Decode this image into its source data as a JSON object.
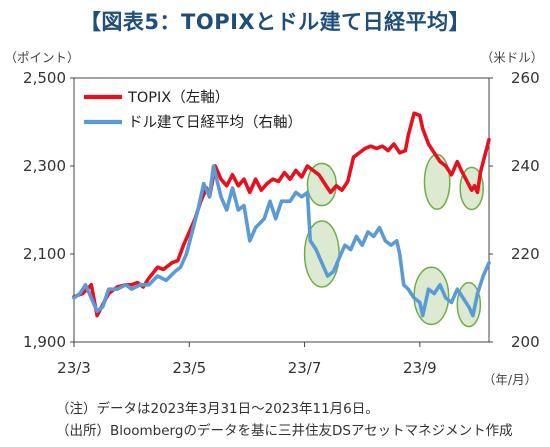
{
  "title": "【図表5：TOPIXとドル建て日経平均】",
  "chart_data": {
    "type": "line",
    "left_axis_unit": "（ポイント）",
    "right_axis_unit": "（米ドル）",
    "x_axis_unit": "（年/月）",
    "y_left_ticks": [
      "2,500",
      "2,300",
      "2,100",
      "1,900"
    ],
    "y_right_ticks": [
      "260",
      "240",
      "220",
      "200"
    ],
    "ylim_left": [
      1900,
      2500
    ],
    "ylim_right": [
      200,
      260
    ],
    "x_ticks": [
      "23/3",
      "23/5",
      "23/7",
      "23/9"
    ],
    "x_tick_positions": [
      0,
      2,
      4,
      6
    ],
    "x_range": [
      0,
      7.2
    ],
    "legend_position": "top-left",
    "series": [
      {
        "name": "TOPIX（左軸）",
        "axis": "left",
        "color": "#e8101e",
        "points": [
          [
            0,
            2003
          ],
          [
            0.15,
            2010
          ],
          [
            0.3,
            2030
          ],
          [
            0.4,
            1960
          ],
          [
            0.5,
            1985
          ],
          [
            0.6,
            2010
          ],
          [
            0.75,
            2025
          ],
          [
            0.9,
            2030
          ],
          [
            1.0,
            2030
          ],
          [
            1.1,
            2035
          ],
          [
            1.2,
            2025
          ],
          [
            1.3,
            2045
          ],
          [
            1.45,
            2070
          ],
          [
            1.55,
            2065
          ],
          [
            1.7,
            2080
          ],
          [
            1.8,
            2085
          ],
          [
            1.9,
            2120
          ],
          [
            2.0,
            2150
          ],
          [
            2.1,
            2180
          ],
          [
            2.2,
            2220
          ],
          [
            2.3,
            2250
          ],
          [
            2.35,
            2230
          ],
          [
            2.45,
            2300
          ],
          [
            2.55,
            2270
          ],
          [
            2.65,
            2255
          ],
          [
            2.75,
            2280
          ],
          [
            2.85,
            2255
          ],
          [
            2.95,
            2270
          ],
          [
            3.05,
            2240
          ],
          [
            3.15,
            2270
          ],
          [
            3.25,
            2245
          ],
          [
            3.35,
            2260
          ],
          [
            3.45,
            2270
          ],
          [
            3.55,
            2265
          ],
          [
            3.65,
            2285
          ],
          [
            3.75,
            2270
          ],
          [
            3.85,
            2290
          ],
          [
            3.95,
            2275
          ],
          [
            4.05,
            2300
          ],
          [
            4.15,
            2290
          ],
          [
            4.25,
            2280
          ],
          [
            4.35,
            2260
          ],
          [
            4.45,
            2240
          ],
          [
            4.55,
            2255
          ],
          [
            4.65,
            2245
          ],
          [
            4.75,
            2265
          ],
          [
            4.85,
            2320
          ],
          [
            4.95,
            2330
          ],
          [
            5.05,
            2340
          ],
          [
            5.15,
            2345
          ],
          [
            5.25,
            2340
          ],
          [
            5.35,
            2345
          ],
          [
            5.45,
            2335
          ],
          [
            5.55,
            2350
          ],
          [
            5.65,
            2330
          ],
          [
            5.75,
            2335
          ],
          [
            5.8,
            2370
          ],
          [
            5.9,
            2420
          ],
          [
            6.0,
            2415
          ],
          [
            6.05,
            2385
          ],
          [
            6.15,
            2350
          ],
          [
            6.25,
            2330
          ],
          [
            6.35,
            2310
          ],
          [
            6.45,
            2300
          ],
          [
            6.55,
            2280
          ],
          [
            6.65,
            2310
          ],
          [
            6.72,
            2290
          ],
          [
            6.8,
            2270
          ],
          [
            6.9,
            2245
          ],
          [
            6.95,
            2255
          ],
          [
            7.0,
            2240
          ],
          [
            7.05,
            2285
          ],
          [
            7.12,
            2320
          ],
          [
            7.2,
            2360
          ]
        ]
      },
      {
        "name": "ドル建て日経平均（右軸）",
        "axis": "right",
        "color": "#5b9bd5",
        "points": [
          [
            0,
            210
          ],
          [
            0.1,
            211
          ],
          [
            0.2,
            213
          ],
          [
            0.3,
            210
          ],
          [
            0.4,
            207
          ],
          [
            0.5,
            208
          ],
          [
            0.6,
            212
          ],
          [
            0.75,
            212
          ],
          [
            0.9,
            213
          ],
          [
            1.0,
            212
          ],
          [
            1.15,
            213
          ],
          [
            1.3,
            213
          ],
          [
            1.45,
            215
          ],
          [
            1.6,
            214
          ],
          [
            1.75,
            216
          ],
          [
            1.85,
            217
          ],
          [
            1.95,
            220
          ],
          [
            2.05,
            225
          ],
          [
            2.15,
            230
          ],
          [
            2.25,
            236
          ],
          [
            2.35,
            233
          ],
          [
            2.42,
            240
          ],
          [
            2.55,
            233
          ],
          [
            2.65,
            230
          ],
          [
            2.75,
            235
          ],
          [
            2.85,
            230
          ],
          [
            2.95,
            231
          ],
          [
            3.05,
            223
          ],
          [
            3.15,
            226
          ],
          [
            3.3,
            228
          ],
          [
            3.4,
            232
          ],
          [
            3.5,
            228
          ],
          [
            3.6,
            232
          ],
          [
            3.75,
            232
          ],
          [
            3.85,
            234
          ],
          [
            3.95,
            233
          ],
          [
            4.05,
            234
          ],
          [
            4.1,
            223
          ],
          [
            4.2,
            221
          ],
          [
            4.3,
            218
          ],
          [
            4.4,
            215
          ],
          [
            4.5,
            216
          ],
          [
            4.6,
            219
          ],
          [
            4.7,
            222
          ],
          [
            4.8,
            221
          ],
          [
            4.9,
            224
          ],
          [
            5.0,
            222
          ],
          [
            5.1,
            225
          ],
          [
            5.2,
            224
          ],
          [
            5.3,
            226
          ],
          [
            5.4,
            223
          ],
          [
            5.5,
            222
          ],
          [
            5.6,
            223
          ],
          [
            5.65,
            220
          ],
          [
            5.72,
            213
          ],
          [
            5.8,
            212
          ],
          [
            5.9,
            210
          ],
          [
            6.0,
            209
          ],
          [
            6.05,
            206
          ],
          [
            6.15,
            212
          ],
          [
            6.25,
            211
          ],
          [
            6.35,
            213
          ],
          [
            6.45,
            210
          ],
          [
            6.55,
            209
          ],
          [
            6.65,
            212
          ],
          [
            6.75,
            210
          ],
          [
            6.85,
            208
          ],
          [
            6.92,
            206
          ],
          [
            7.0,
            211
          ],
          [
            7.1,
            215
          ],
          [
            7.2,
            218
          ]
        ]
      }
    ],
    "highlight_color": "#70ad47",
    "highlights": [
      {
        "axis": "left",
        "x": 4.3,
        "y": 2258,
        "span_x": 0.25,
        "span_y": 48
      },
      {
        "axis": "right",
        "x": 4.3,
        "y": 220,
        "span_x": 0.3,
        "span_y": 7.5
      },
      {
        "axis": "left",
        "x": 6.3,
        "y": 2264,
        "span_x": 0.22,
        "span_y": 62
      },
      {
        "axis": "right",
        "x": 6.2,
        "y": 210.5,
        "span_x": 0.3,
        "span_y": 6.5
      },
      {
        "axis": "left",
        "x": 6.9,
        "y": 2249,
        "span_x": 0.2,
        "span_y": 48
      },
      {
        "axis": "right",
        "x": 6.85,
        "y": 208.5,
        "span_x": 0.2,
        "span_y": 5
      }
    ]
  },
  "notes": [
    "（注）データは2023年3月31日～2023年11月6日。",
    "（出所）Bloombergのデータを基に三井住友DSアセットマネジメント作成"
  ]
}
